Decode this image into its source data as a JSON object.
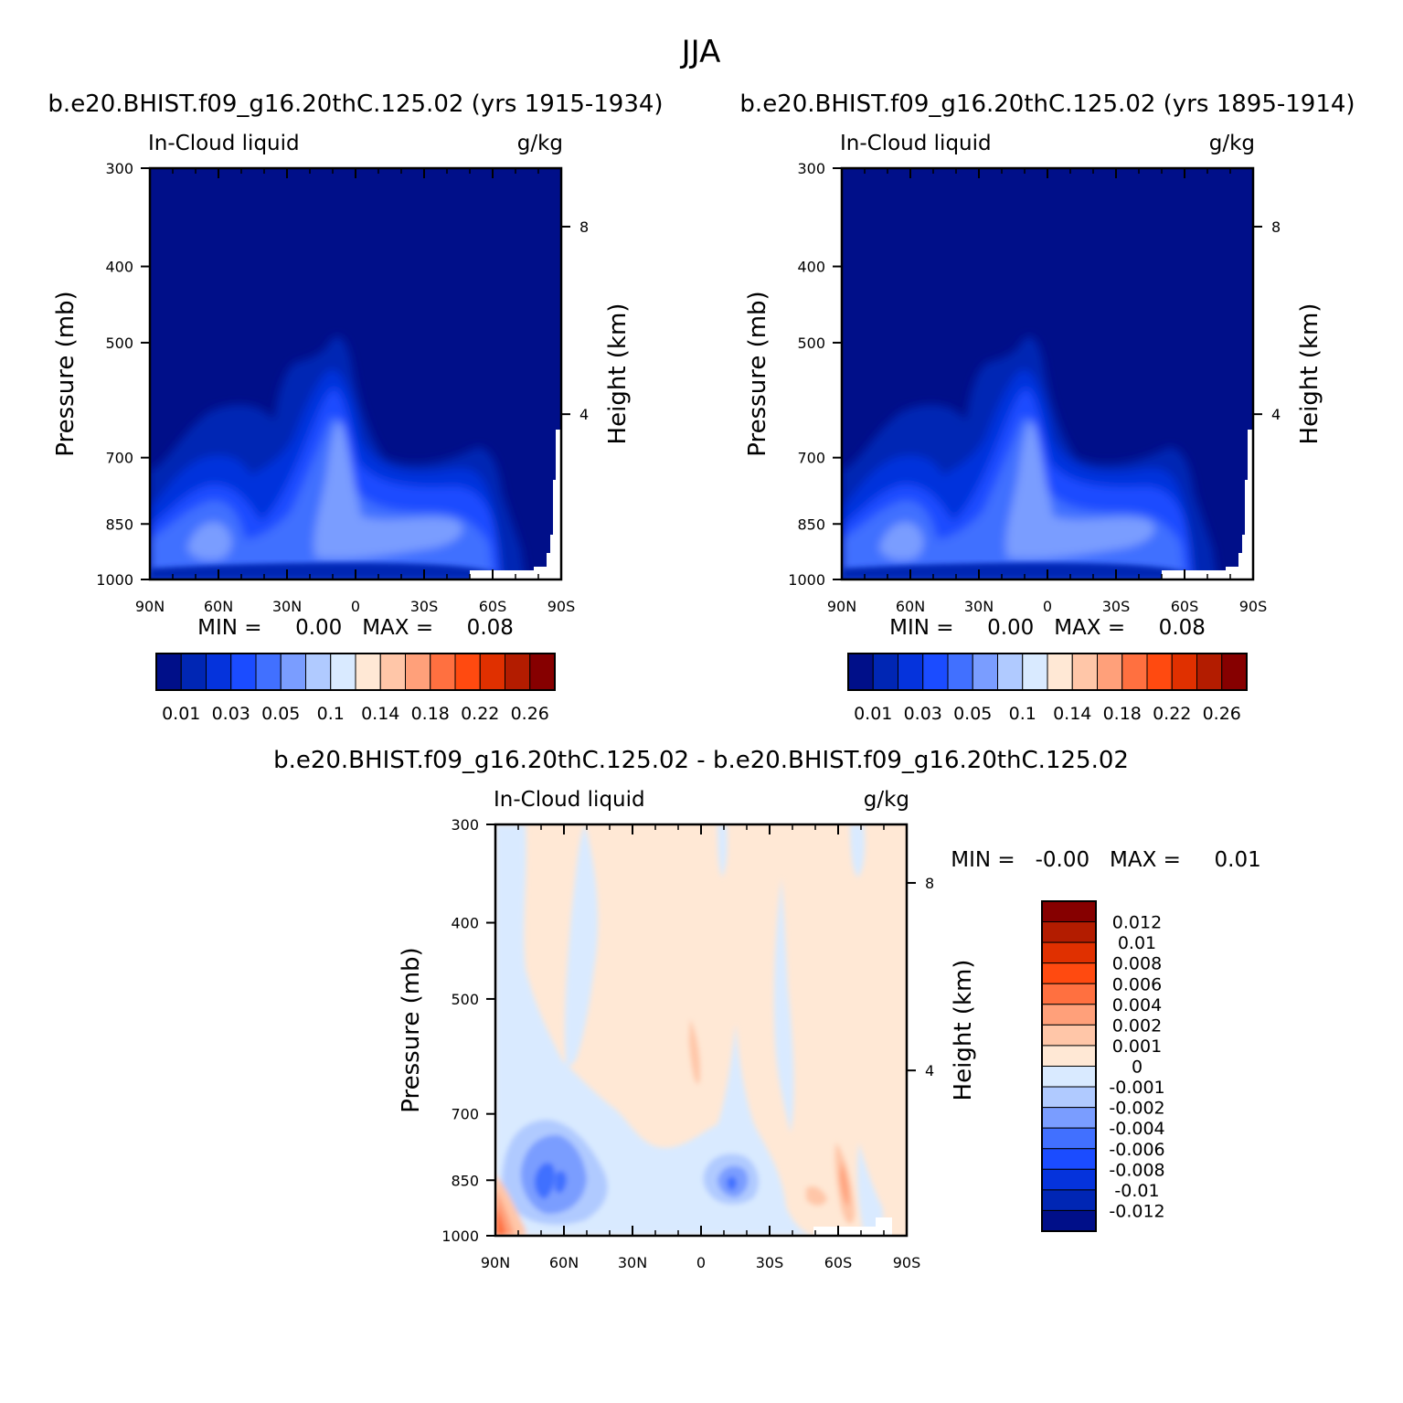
{
  "figure": {
    "title": "JJA"
  },
  "colors": {
    "abs_levels": [
      "#000f89",
      "#0026b4",
      "#0533dc",
      "#1b4cff",
      "#4170ff",
      "#7a9dff",
      "#b0caff",
      "#d9eaff",
      "#ffe8d5",
      "#ffc6a8",
      "#ffa07a",
      "#ff7040",
      "#ff4a10",
      "#e03000",
      "#b31c00",
      "#860000"
    ],
    "diff_levels": [
      "#000f89",
      "#0026b4",
      "#0533dc",
      "#1b4cff",
      "#4170ff",
      "#7a9dff",
      "#b0caff",
      "#d9eaff",
      "#ffe8d5",
      "#ffc6a8",
      "#ffa07a",
      "#ff7040",
      "#ff4a10",
      "#e03000",
      "#b31c00",
      "#860000"
    ]
  },
  "chart_data": [
    {
      "type": "heatmap",
      "id": "left",
      "title": "b.e20.BHIST.f09_g16.20thC.125.02 (yrs 1915-1934)",
      "left_string": "In-Cloud liquid",
      "right_string": "g/kg",
      "xlabel": "",
      "ylabel": "Pressure (mb)",
      "right_axis_label": "Height (km)",
      "x_ticks": [
        "90N",
        "60N",
        "30N",
        "0",
        "30S",
        "60S",
        "90S"
      ],
      "y_ticks": [
        "300",
        "400",
        "500",
        "700",
        "850",
        "1000"
      ],
      "right_ticks": [
        "8",
        "4"
      ],
      "xlim": [
        90,
        -90
      ],
      "ylim": [
        1000,
        300
      ],
      "min_max": "MIN =     0.00   MAX =     0.08",
      "colorbar_labels": [
        "0.01",
        "0.03",
        "0.05",
        "0.1",
        "0.14",
        "0.18",
        "0.22",
        "0.26"
      ]
    },
    {
      "type": "heatmap",
      "id": "right",
      "title": "b.e20.BHIST.f09_g16.20thC.125.02 (yrs 1895-1914)",
      "left_string": "In-Cloud liquid",
      "right_string": "g/kg",
      "xlabel": "",
      "ylabel": "Pressure (mb)",
      "right_axis_label": "Height (km)",
      "x_ticks": [
        "90N",
        "60N",
        "30N",
        "0",
        "30S",
        "60S",
        "90S"
      ],
      "y_ticks": [
        "300",
        "400",
        "500",
        "700",
        "850",
        "1000"
      ],
      "right_ticks": [
        "8",
        "4"
      ],
      "xlim": [
        90,
        -90
      ],
      "ylim": [
        1000,
        300
      ],
      "min_max": "MIN =     0.00   MAX =     0.08",
      "colorbar_labels": [
        "0.01",
        "0.03",
        "0.05",
        "0.1",
        "0.14",
        "0.18",
        "0.22",
        "0.26"
      ]
    },
    {
      "type": "heatmap",
      "id": "diff",
      "title": "b.e20.BHIST.f09_g16.20thC.125.02 - b.e20.BHIST.f09_g16.20thC.125.02",
      "left_string": "In-Cloud liquid",
      "right_string": "g/kg",
      "xlabel": "",
      "ylabel": "Pressure (mb)",
      "right_axis_label": "Height (km)",
      "x_ticks": [
        "90N",
        "60N",
        "30N",
        "0",
        "30S",
        "60S",
        "90S"
      ],
      "y_ticks": [
        "300",
        "400",
        "500",
        "700",
        "850",
        "1000"
      ],
      "right_ticks": [
        "8",
        "4"
      ],
      "xlim": [
        90,
        -90
      ],
      "ylim": [
        1000,
        300
      ],
      "min_max": "MIN =   -0.00   MAX =     0.01",
      "colorbar_labels": [
        "0.012",
        "0.01",
        "0.008",
        "0.006",
        "0.004",
        "0.002",
        "0.001",
        "0",
        "-0.001",
        "-0.002",
        "-0.004",
        "-0.006",
        "-0.008",
        "-0.01",
        "-0.012"
      ]
    }
  ]
}
